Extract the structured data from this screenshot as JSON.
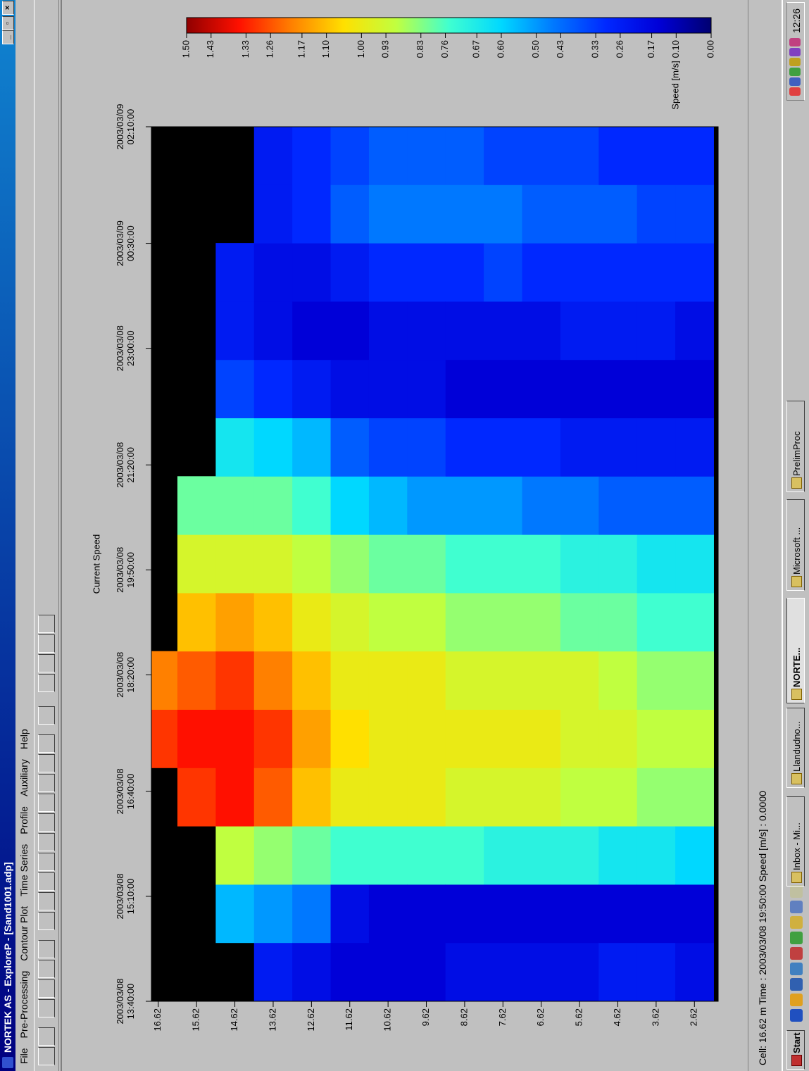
{
  "window": {
    "title": "NORTEK AS - ExploreP - [Sand1001.adp]",
    "menu": [
      "File",
      "Pre-Processing",
      "Contour Plot",
      "Time Series",
      "Profile",
      "Auxiliary",
      "Help"
    ]
  },
  "status_bar": "Cell: 16.62 m Time : 2003/03/08 19:50:00 Speed [m/s] : 0.0000",
  "taskbar": {
    "start": "Start",
    "tasks": [
      "Inbox - Mi...",
      "Llandudno...",
      "NORTE...",
      "Microsoft ...",
      "PrelimProc"
    ],
    "clock": "12:26"
  },
  "chart_data": {
    "type": "heatmap",
    "title": "Current Speed",
    "xlim": [
      "2003/03/08 13:40:00",
      "2003/03/09 02:10:00"
    ],
    "xticks": [
      "2003/03/08 13:40:00",
      "2003/03/08 15:10:00",
      "2003/03/08 16:40:00",
      "2003/03/08 18:20:00",
      "2003/03/08 19:50:00",
      "2003/03/08 21:20:00",
      "2003/03/08 23:00:00",
      "2003/03/09 00:30:00",
      "2003/03/09 02:10:00"
    ],
    "ylim": [
      2.0,
      16.8
    ],
    "yticks": [
      16.62,
      15.62,
      14.62,
      13.62,
      12.62,
      11.62,
      10.62,
      9.62,
      8.62,
      7.62,
      6.62,
      5.62,
      4.62,
      3.62,
      2.62
    ],
    "x": [
      "2003/03/08 14:05:00",
      "2003/03/08 14:55:00",
      "2003/03/08 15:45:00",
      "2003/03/08 16:35:00",
      "2003/03/08 17:25:00",
      "2003/03/08 18:15:00",
      "2003/03/08 19:05:00",
      "2003/03/08 19:55:00",
      "2003/03/08 20:45:00",
      "2003/03/08 21:35:00",
      "2003/03/08 22:25:00",
      "2003/03/08 23:15:00",
      "2003/03/09 00:05:00",
      "2003/03/09 00:55:00",
      "2003/03/09 01:45:00"
    ],
    "y": [
      16.62,
      15.62,
      14.62,
      13.62,
      12.62,
      11.62,
      10.62,
      9.62,
      8.62,
      7.62,
      6.62,
      5.62,
      4.62,
      3.62,
      2.62
    ],
    "z": [
      [
        null,
        null,
        null,
        null,
        1.3,
        1.2,
        null,
        null,
        null,
        null,
        null,
        null,
        null,
        null,
        null
      ],
      [
        null,
        null,
        null,
        1.3,
        1.35,
        1.25,
        1.1,
        0.95,
        0.8,
        null,
        null,
        null,
        null,
        null,
        null
      ],
      [
        null,
        0.55,
        0.9,
        1.35,
        1.35,
        1.3,
        1.15,
        0.95,
        0.8,
        0.65,
        0.35,
        0.25,
        0.25,
        null,
        null
      ],
      [
        0.25,
        0.5,
        0.85,
        1.25,
        1.3,
        1.2,
        1.1,
        0.95,
        0.8,
        0.6,
        0.3,
        0.2,
        0.2,
        0.25,
        0.25
      ],
      [
        0.2,
        0.45,
        0.8,
        1.1,
        1.15,
        1.1,
        1.0,
        0.9,
        0.75,
        0.55,
        0.25,
        0.15,
        0.2,
        0.3,
        0.3
      ],
      [
        0.15,
        0.2,
        0.75,
        1.0,
        1.05,
        1.0,
        0.95,
        0.85,
        0.6,
        0.4,
        0.2,
        0.15,
        0.25,
        0.4,
        0.35
      ],
      [
        0.15,
        0.15,
        0.75,
        1.0,
        1.0,
        1.0,
        0.9,
        0.8,
        0.55,
        0.35,
        0.2,
        0.2,
        0.3,
        0.45,
        0.4
      ],
      [
        0.15,
        0.15,
        0.75,
        1.0,
        1.0,
        1.0,
        0.9,
        0.8,
        0.5,
        0.35,
        0.2,
        0.2,
        0.3,
        0.45,
        0.4
      ],
      [
        0.2,
        0.15,
        0.75,
        0.95,
        1.0,
        0.95,
        0.85,
        0.75,
        0.5,
        0.3,
        0.15,
        0.2,
        0.3,
        0.45,
        0.4
      ],
      [
        0.2,
        0.15,
        0.7,
        0.95,
        1.0,
        0.95,
        0.85,
        0.75,
        0.5,
        0.3,
        0.15,
        0.2,
        0.35,
        0.45,
        0.35
      ],
      [
        0.2,
        0.15,
        0.7,
        0.95,
        1.0,
        0.95,
        0.85,
        0.75,
        0.45,
        0.3,
        0.15,
        0.2,
        0.3,
        0.4,
        0.35
      ],
      [
        0.2,
        0.15,
        0.7,
        0.9,
        0.95,
        0.95,
        0.8,
        0.7,
        0.45,
        0.25,
        0.15,
        0.25,
        0.3,
        0.4,
        0.35
      ],
      [
        0.25,
        0.15,
        0.65,
        0.9,
        0.95,
        0.9,
        0.8,
        0.7,
        0.4,
        0.25,
        0.15,
        0.25,
        0.3,
        0.4,
        0.3
      ],
      [
        0.25,
        0.15,
        0.65,
        0.85,
        0.9,
        0.85,
        0.75,
        0.65,
        0.4,
        0.25,
        0.15,
        0.25,
        0.3,
        0.35,
        0.3
      ],
      [
        0.2,
        0.15,
        0.6,
        0.85,
        0.9,
        0.85,
        0.75,
        0.65,
        0.4,
        0.25,
        0.15,
        0.2,
        0.3,
        0.35,
        0.3
      ]
    ],
    "nodata_color": "#000000",
    "colorbar": {
      "label": "Speed [m/s]",
      "lim": [
        0,
        1.5
      ],
      "colors": [
        "#000070",
        "#0000d8",
        "#0028ff",
        "#0078ff",
        "#00d8ff",
        "#40ffd0",
        "#c0ff40",
        "#ffe000",
        "#ff8000",
        "#ff1000",
        "#900000"
      ],
      "ticks": [
        {
          "value": 1.5,
          "label": "1.50"
        },
        1.43,
        1.33,
        1.26,
        1.17,
        {
          "value": 1.1,
          "label": "1.10"
        },
        {
          "value": 1.0,
          "label": "1.00"
        },
        0.93,
        0.83,
        0.76,
        0.67,
        {
          "value": 0.6,
          "label": "0.60"
        },
        {
          "value": 0.5,
          "label": "0.50"
        },
        0.43,
        0.33,
        0.26,
        0.17,
        {
          "value": 0.1,
          "label": "0.10"
        },
        {
          "value": 0,
          "label": "0.00"
        }
      ]
    }
  }
}
